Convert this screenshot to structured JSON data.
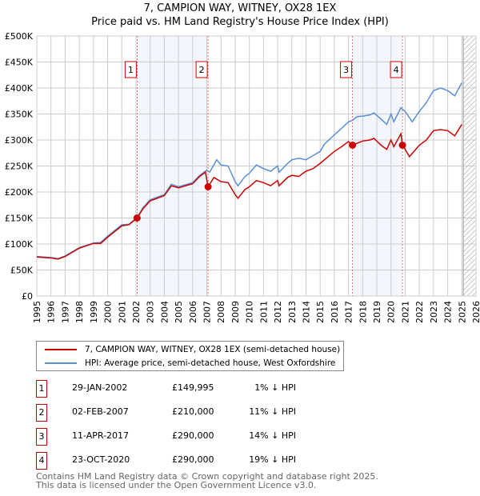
{
  "chart_data": {
    "type": "line",
    "title": "7, CAMPION WAY, WITNEY, OX28 1EX",
    "subtitle": "Price paid vs. HM Land Registry's House Price Index (HPI)",
    "xlim": [
      1995,
      2026
    ],
    "ylim": [
      0,
      500000
    ],
    "x_ticks": [
      "1995",
      "1996",
      "1997",
      "1998",
      "1999",
      "2000",
      "2001",
      "2002",
      "2003",
      "2004",
      "2005",
      "2006",
      "2007",
      "2008",
      "2009",
      "2010",
      "2011",
      "2012",
      "2013",
      "2014",
      "2015",
      "2016",
      "2017",
      "2018",
      "2019",
      "2020",
      "2021",
      "2022",
      "2023",
      "2024",
      "2025",
      "2026"
    ],
    "y_ticks": [
      {
        "v": 0,
        "l": "£0"
      },
      {
        "v": 50000,
        "l": "£50K"
      },
      {
        "v": 100000,
        "l": "£100K"
      },
      {
        "v": 150000,
        "l": "£150K"
      },
      {
        "v": 200000,
        "l": "£200K"
      },
      {
        "v": 250000,
        "l": "£250K"
      },
      {
        "v": 300000,
        "l": "£300K"
      },
      {
        "v": 350000,
        "l": "£350K"
      },
      {
        "v": 400000,
        "l": "£400K"
      },
      {
        "v": 450000,
        "l": "£450K"
      },
      {
        "v": 500000,
        "l": "£500K"
      }
    ],
    "grid": true,
    "shaded_periods": [
      [
        2002.08,
        2007.09
      ],
      [
        2017.28,
        2020.81
      ]
    ],
    "forecast_hatch_from": 2025.1,
    "series": [
      {
        "name": "7, CAMPION WAY, WITNEY, OX28 1EX (semi-detached house)",
        "color": "#cc0000",
        "points": [
          [
            1995,
            75
          ],
          [
            1996,
            73
          ],
          [
            1996.5,
            71
          ],
          [
            1997,
            76
          ],
          [
            1998,
            92
          ],
          [
            1999,
            101
          ],
          [
            1999.5,
            101
          ],
          [
            2000,
            113
          ],
          [
            2001,
            135
          ],
          [
            2001.5,
            137
          ],
          [
            2002.08,
            150
          ],
          [
            2002.5,
            168
          ],
          [
            2003,
            183
          ],
          [
            2004,
            193
          ],
          [
            2004.5,
            212
          ],
          [
            2005,
            208
          ],
          [
            2006,
            216
          ],
          [
            2006.5,
            230
          ],
          [
            2006.9,
            238
          ],
          [
            2007.09,
            210
          ],
          [
            2007.5,
            228
          ],
          [
            2008,
            220
          ],
          [
            2008.5,
            218
          ],
          [
            2009,
            195
          ],
          [
            2009.2,
            188
          ],
          [
            2009.7,
            205
          ],
          [
            2010,
            210
          ],
          [
            2010.5,
            222
          ],
          [
            2011,
            218
          ],
          [
            2011.5,
            212
          ],
          [
            2012,
            222
          ],
          [
            2012.1,
            212
          ],
          [
            2012.7,
            228
          ],
          [
            2013,
            232
          ],
          [
            2013.5,
            230
          ],
          [
            2014,
            240
          ],
          [
            2014.5,
            245
          ],
          [
            2015,
            255
          ],
          [
            2015.3,
            262
          ],
          [
            2016,
            278
          ],
          [
            2016.5,
            287
          ],
          [
            2017,
            297
          ],
          [
            2017.28,
            290
          ],
          [
            2018,
            298
          ],
          [
            2018.5,
            300
          ],
          [
            2018.8,
            303
          ],
          [
            2019.3,
            290
          ],
          [
            2019.7,
            282
          ],
          [
            2020,
            300
          ],
          [
            2020.2,
            287
          ],
          [
            2020.7,
            312
          ],
          [
            2020.81,
            290
          ],
          [
            2021,
            282
          ],
          [
            2021.3,
            268
          ],
          [
            2022,
            290
          ],
          [
            2022.5,
            300
          ],
          [
            2023,
            318
          ],
          [
            2023.5,
            320
          ],
          [
            2024,
            318
          ],
          [
            2024.5,
            308
          ],
          [
            2025,
            330
          ]
        ]
      },
      {
        "name": "HPI: Average price, semi-detached house, West Oxfordshire",
        "color": "#5b8fd4",
        "points": [
          [
            1995,
            76
          ],
          [
            1996,
            74
          ],
          [
            1996.5,
            72
          ],
          [
            1997,
            77
          ],
          [
            1998,
            93
          ],
          [
            1999,
            102
          ],
          [
            1999.5,
            103
          ],
          [
            2000,
            115
          ],
          [
            2001,
            137
          ],
          [
            2001.5,
            138
          ],
          [
            2002.08,
            151
          ],
          [
            2002.5,
            170
          ],
          [
            2003,
            185
          ],
          [
            2004,
            195
          ],
          [
            2004.5,
            215
          ],
          [
            2005,
            210
          ],
          [
            2006,
            218
          ],
          [
            2006.5,
            232
          ],
          [
            2007,
            242
          ],
          [
            2007.2,
            238
          ],
          [
            2007.7,
            262
          ],
          [
            2008,
            252
          ],
          [
            2008.5,
            250
          ],
          [
            2009,
            220
          ],
          [
            2009.2,
            212
          ],
          [
            2009.7,
            230
          ],
          [
            2010,
            236
          ],
          [
            2010.5,
            252
          ],
          [
            2011,
            245
          ],
          [
            2011.5,
            240
          ],
          [
            2012,
            250
          ],
          [
            2012.1,
            238
          ],
          [
            2012.7,
            255
          ],
          [
            2013,
            262
          ],
          [
            2013.5,
            265
          ],
          [
            2014,
            262
          ],
          [
            2014.5,
            270
          ],
          [
            2015,
            278
          ],
          [
            2015.3,
            292
          ],
          [
            2016,
            310
          ],
          [
            2016.5,
            322
          ],
          [
            2017,
            335
          ],
          [
            2017.3,
            338
          ],
          [
            2017.6,
            345
          ],
          [
            2018,
            346
          ],
          [
            2018.5,
            348
          ],
          [
            2018.8,
            352
          ],
          [
            2019.3,
            340
          ],
          [
            2019.7,
            330
          ],
          [
            2020,
            350
          ],
          [
            2020.2,
            335
          ],
          [
            2020.7,
            362
          ],
          [
            2021,
            355
          ],
          [
            2021.5,
            335
          ],
          [
            2022,
            355
          ],
          [
            2022.5,
            372
          ],
          [
            2023,
            395
          ],
          [
            2023.5,
            400
          ],
          [
            2024,
            395
          ],
          [
            2024.5,
            385
          ],
          [
            2025,
            410
          ]
        ]
      }
    ],
    "sales": [
      {
        "n": "1",
        "x": 2002.08,
        "price": 149995,
        "date": "29-JAN-2002",
        "price_label": "£149,995",
        "hpi": "1% ↓ HPI"
      },
      {
        "n": "2",
        "x": 2007.09,
        "price": 210000,
        "date": "02-FEB-2007",
        "price_label": "£210,000",
        "hpi": "11% ↓ HPI"
      },
      {
        "n": "3",
        "x": 2017.28,
        "price": 290000,
        "date": "11-APR-2017",
        "price_label": "£290,000",
        "hpi": "14% ↓ HPI"
      },
      {
        "n": "4",
        "x": 2020.81,
        "price": 290000,
        "date": "23-OCT-2020",
        "price_label": "£290,000",
        "hpi": "19% ↓ HPI"
      }
    ]
  },
  "footer": {
    "line1": "Contains HM Land Registry data © Crown copyright and database right 2025.",
    "line2": "This data is licensed under the Open Government Licence v3.0."
  }
}
